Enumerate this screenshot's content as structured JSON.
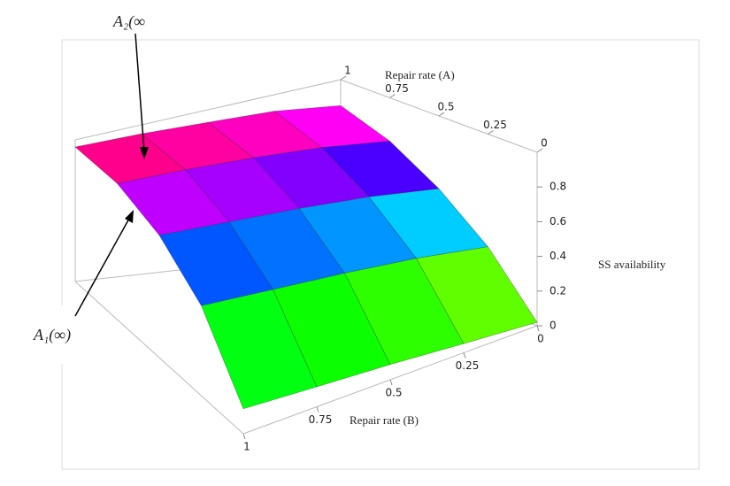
{
  "chart_data": {
    "type": "surface",
    "x_label": "Repair rate (A)",
    "y_label": "Repair rate (B)",
    "z_label": "SS availability",
    "x": [
      0,
      0.25,
      0.5,
      0.75,
      1
    ],
    "y": [
      0,
      0.25,
      0.5,
      0.75,
      1
    ],
    "z": [
      [
        0.02,
        0.05,
        0.08,
        0.1,
        0.12
      ],
      [
        0.35,
        0.4,
        0.43,
        0.45,
        0.47
      ],
      [
        0.58,
        0.63,
        0.66,
        0.68,
        0.7
      ],
      [
        0.75,
        0.8,
        0.83,
        0.85,
        0.86
      ],
      [
        0.85,
        0.9,
        0.92,
        0.94,
        0.95
      ]
    ],
    "xlim": [
      0,
      1
    ],
    "ylim": [
      0,
      1
    ],
    "zlim": [
      0,
      1
    ],
    "xticks": [
      0,
      0.25,
      0.5,
      0.75,
      1
    ],
    "yticks": [
      0,
      0.25,
      0.5,
      0.75,
      1
    ],
    "zticks": [
      0,
      0.2,
      0.4,
      0.6,
      0.8
    ],
    "colormap": "hue",
    "annotations": [
      {
        "text": "A₂(∞"
      },
      {
        "text": "A₁(∞)"
      }
    ]
  }
}
